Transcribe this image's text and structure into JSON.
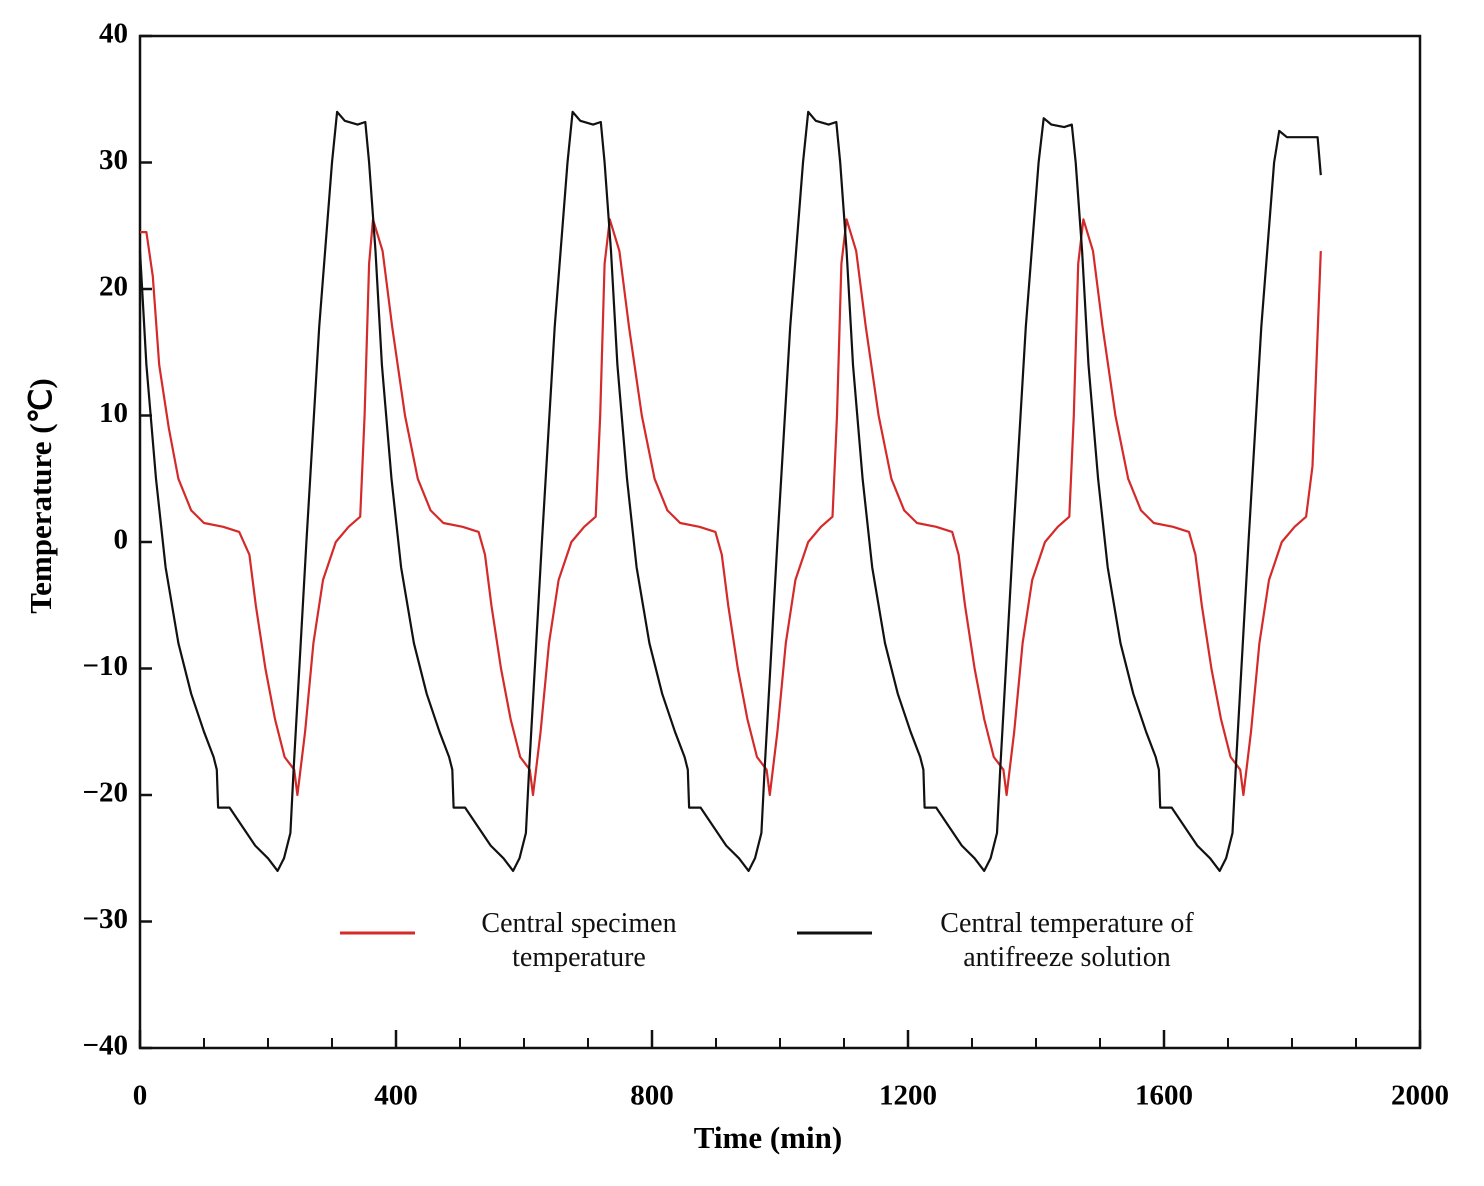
{
  "chart_data": {
    "type": "line",
    "xlabel": "Time (min)",
    "ylabel": "Temperature (℃)",
    "xlim": [
      0,
      2000
    ],
    "ylim": [
      -40,
      40
    ],
    "xticks": [
      0,
      400,
      800,
      1200,
      1600,
      2000
    ],
    "xminor_ticks": [
      100,
      200,
      300,
      500,
      600,
      700,
      900,
      1000,
      1100,
      1300,
      1400,
      1500,
      1700,
      1800,
      1900
    ],
    "yticks": [
      {
        "value": -40,
        "label": "−40"
      },
      {
        "value": -30,
        "label": "−30"
      },
      {
        "value": -20,
        "label": "−20"
      },
      {
        "value": -10,
        "label": "−10"
      },
      0,
      10,
      20,
      30,
      40
    ],
    "legend": "bottom",
    "series": [
      {
        "name": "Central specimen temperature",
        "color": "#d42a2a",
        "x": [
          0,
          10,
          20,
          30,
          45,
          60,
          80,
          100,
          130,
          155,
          171,
          181,
          196,
          211,
          226,
          241,
          246,
          258,
          271,
          286,
          306,
          326,
          344,
          351,
          358,
          364,
          379,
          394,
          414,
          434,
          454,
          474,
          504,
          529,
          539,
          549,
          564,
          579,
          594,
          609,
          614,
          626,
          639,
          654,
          674,
          694,
          712,
          719,
          726,
          734,
          749,
          764,
          784,
          804,
          824,
          844,
          874,
          899,
          909,
          919,
          934,
          949,
          964,
          979,
          984,
          996,
          1009,
          1024,
          1044,
          1064,
          1082,
          1089,
          1096,
          1104,
          1119,
          1134,
          1154,
          1174,
          1194,
          1214,
          1244,
          1269,
          1279,
          1289,
          1304,
          1319,
          1334,
          1349,
          1354,
          1366,
          1379,
          1394,
          1414,
          1434,
          1452,
          1459,
          1466,
          1474,
          1489,
          1504,
          1524,
          1544,
          1564,
          1584,
          1614,
          1639,
          1649,
          1659,
          1674,
          1689,
          1704,
          1719,
          1724,
          1736,
          1749,
          1764,
          1784,
          1804,
          1822,
          1832,
          1845
        ],
        "values": [
          24.5,
          24.5,
          21,
          14,
          9,
          5,
          2.5,
          1.5,
          1.2,
          0.8,
          -1,
          -5,
          -10,
          -14,
          -17,
          -18,
          -20,
          -15,
          -8,
          -3,
          0,
          1.2,
          2,
          10,
          22,
          25.5,
          23,
          17,
          10,
          5,
          2.5,
          1.5,
          1.2,
          0.8,
          -1,
          -5,
          -10,
          -14,
          -17,
          -18,
          -20,
          -15,
          -8,
          -3,
          0,
          1.2,
          2,
          10,
          22,
          25.5,
          23,
          17,
          10,
          5,
          2.5,
          1.5,
          1.2,
          0.8,
          -1,
          -5,
          -10,
          -14,
          -17,
          -18,
          -20,
          -15,
          -8,
          -3,
          0,
          1.2,
          2,
          10,
          22,
          25.5,
          23,
          17,
          10,
          5,
          2.5,
          1.5,
          1.2,
          0.8,
          -1,
          -5,
          -10,
          -14,
          -17,
          -18,
          -20,
          -15,
          -8,
          -3,
          0,
          1.2,
          2,
          10,
          22,
          25.5,
          23,
          17,
          10,
          5,
          2.5,
          1.5,
          1.2,
          0.8,
          -1,
          -5,
          -10,
          -14,
          -17,
          -18,
          -20,
          -15,
          -8,
          -3,
          0,
          1.2,
          2,
          6,
          23
        ]
      },
      {
        "name": "Central temperature of antifreeze solution",
        "color": "#111111",
        "x": [
          0,
          10,
          25,
          40,
          60,
          80,
          100,
          115,
          120,
          122,
          140,
          160,
          180,
          200,
          215,
          225,
          235,
          240,
          260,
          280,
          300,
          308,
          320,
          340,
          352,
          358,
          368,
          378,
          393,
          408,
          428,
          448,
          468,
          483,
          488,
          490,
          508,
          528,
          548,
          568,
          583,
          593,
          603,
          608,
          628,
          648,
          668,
          676,
          688,
          708,
          720,
          726,
          736,
          746,
          761,
          776,
          796,
          816,
          836,
          851,
          856,
          858,
          876,
          896,
          916,
          936,
          951,
          961,
          971,
          976,
          996,
          1016,
          1036,
          1044,
          1056,
          1076,
          1088,
          1094,
          1104,
          1114,
          1129,
          1144,
          1164,
          1184,
          1204,
          1219,
          1224,
          1226,
          1244,
          1264,
          1284,
          1304,
          1319,
          1329,
          1339,
          1344,
          1364,
          1384,
          1404,
          1412,
          1424,
          1444,
          1456,
          1462,
          1472,
          1482,
          1497,
          1512,
          1532,
          1552,
          1572,
          1587,
          1592,
          1594,
          1612,
          1632,
          1652,
          1672,
          1687,
          1697,
          1707,
          1712,
          1732,
          1752,
          1772,
          1780,
          1792,
          1812,
          1824,
          1840,
          1845
        ],
        "values": [
          23,
          14,
          5,
          -2,
          -8,
          -12,
          -15,
          -17,
          -18,
          -21,
          -21,
          -22.5,
          -24,
          -25,
          -26,
          -25,
          -23,
          -18,
          0,
          17,
          30,
          34,
          33.3,
          33,
          33.2,
          30,
          23,
          14,
          5,
          -2,
          -8,
          -12,
          -15,
          -17,
          -18,
          -21,
          -21,
          -22.5,
          -24,
          -25,
          -26,
          -25,
          -23,
          -18,
          0,
          17,
          30,
          34,
          33.3,
          33,
          33.2,
          30,
          23,
          14,
          5,
          -2,
          -8,
          -12,
          -15,
          -17,
          -18,
          -21,
          -21,
          -22.5,
          -24,
          -25,
          -26,
          -25,
          -23,
          -18,
          0,
          17,
          30,
          34,
          33.3,
          33,
          33.2,
          30,
          23,
          14,
          5,
          -2,
          -8,
          -12,
          -15,
          -17,
          -18,
          -21,
          -21,
          -22.5,
          -24,
          -25,
          -26,
          -25,
          -23,
          -18,
          0,
          17,
          30,
          33.5,
          33,
          32.8,
          33,
          30,
          23,
          14,
          5,
          -2,
          -8,
          -12,
          -15,
          -17,
          -18,
          -21,
          -21,
          -22.5,
          -24,
          -25,
          -26,
          -25,
          -23,
          -18,
          0,
          17,
          30,
          32.5,
          32,
          32,
          32,
          32,
          29
        ]
      }
    ]
  }
}
